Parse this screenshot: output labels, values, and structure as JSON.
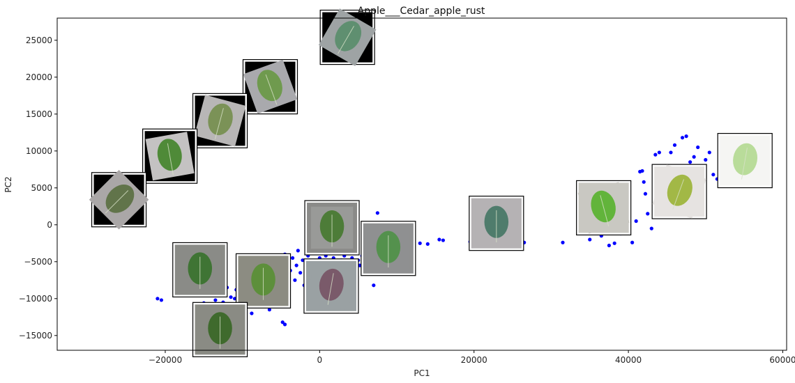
{
  "chart_data": {
    "type": "scatter",
    "title": "Apple___Cedar_apple_rust",
    "xlabel": "PC1",
    "ylabel": "PC2",
    "xlim": [
      -34000,
      60500
    ],
    "ylim": [
      -17000,
      28000
    ],
    "x_ticks": [
      -20000,
      0,
      20000,
      40000,
      60000
    ],
    "x_tick_labels": [
      "−20000",
      "0",
      "20000",
      "40000",
      "60000"
    ],
    "y_ticks": [
      -15000,
      -10000,
      -5000,
      0,
      5000,
      10000,
      15000,
      20000,
      25000
    ],
    "y_tick_labels": [
      "−15000",
      "−10000",
      "−5000",
      "0",
      "5000",
      "10000",
      "15000",
      "20000",
      "25000"
    ],
    "grid": false,
    "point_color": "#0000ff",
    "points": [
      [
        -21000,
        -10000
      ],
      [
        -20500,
        -10200
      ],
      [
        -15500,
        -10800
      ],
      [
        -15000,
        -10600
      ],
      [
        -14000,
        -9500
      ],
      [
        -13500,
        -10200
      ],
      [
        -13000,
        -9000
      ],
      [
        -12500,
        -10500
      ],
      [
        -12000,
        -8500
      ],
      [
        -11500,
        -9800
      ],
      [
        -11000,
        -10000
      ],
      [
        -10800,
        -8800
      ],
      [
        -10500,
        -11500
      ],
      [
        -10200,
        -10600
      ],
      [
        -10000,
        -9200
      ],
      [
        -9800,
        -8400
      ],
      [
        -9500,
        -9900
      ],
      [
        -9200,
        -7800
      ],
      [
        -9000,
        -10800
      ],
      [
        -8800,
        -12000
      ],
      [
        -8500,
        -7000
      ],
      [
        -8200,
        -8800
      ],
      [
        -8000,
        -6500
      ],
      [
        -7800,
        -9500
      ],
      [
        -7500,
        -10500
      ],
      [
        -7200,
        -7500
      ],
      [
        -7000,
        -6200
      ],
      [
        -6800,
        -8800
      ],
      [
        -6500,
        -11500
      ],
      [
        -6200,
        -6000
      ],
      [
        -6000,
        -9800
      ],
      [
        -5800,
        -7200
      ],
      [
        -5500,
        -5500
      ],
      [
        -5200,
        -8200
      ],
      [
        -5000,
        -6800
      ],
      [
        -4800,
        -13200
      ],
      [
        -4500,
        -13500
      ],
      [
        -4500,
        -4000
      ],
      [
        -4200,
        -5000
      ],
      [
        -4000,
        -9000
      ],
      [
        -3800,
        -6200
      ],
      [
        -3500,
        -4500
      ],
      [
        -3200,
        -7500
      ],
      [
        -3000,
        -5500
      ],
      [
        -2800,
        -3500
      ],
      [
        -2500,
        -6500
      ],
      [
        -2200,
        -4800
      ],
      [
        -2000,
        -8200
      ],
      [
        -1800,
        -5800
      ],
      [
        -1500,
        -4200
      ],
      [
        -1200,
        -7200
      ],
      [
        -1000,
        -5500
      ],
      [
        -800,
        -3800
      ],
      [
        -500,
        -6200
      ],
      [
        -300,
        -9500
      ],
      [
        -200,
        -2500
      ],
      [
        0,
        -4500
      ],
      [
        200,
        -3000
      ],
      [
        500,
        -5800
      ],
      [
        800,
        -4200
      ],
      [
        1000,
        -6500
      ],
      [
        1200,
        -3500
      ],
      [
        1500,
        -5000
      ],
      [
        1800,
        -4500
      ],
      [
        2000,
        -6200
      ],
      [
        2200,
        -3800
      ],
      [
        2500,
        -5200
      ],
      [
        2800,
        -4800
      ],
      [
        3000,
        -6800
      ],
      [
        3200,
        -4200
      ],
      [
        3500,
        -5500
      ],
      [
        3800,
        -3800
      ],
      [
        4000,
        -5000
      ],
      [
        4200,
        -4500
      ],
      [
        4500,
        -6000
      ],
      [
        4800,
        -3500
      ],
      [
        5000,
        -4800
      ],
      [
        5200,
        -5500
      ],
      [
        5500,
        -4200
      ],
      [
        5800,
        -3000
      ],
      [
        6000,
        -5000
      ],
      [
        6200,
        -4000
      ],
      [
        6500,
        -6500
      ],
      [
        6800,
        -2500
      ],
      [
        7000,
        -8200
      ],
      [
        7500,
        1600
      ],
      [
        8000,
        -3500
      ],
      [
        8500,
        -4500
      ],
      [
        9000,
        -3000
      ],
      [
        9500,
        -4000
      ],
      [
        10000,
        -3500
      ],
      [
        11000,
        -2800
      ],
      [
        12000,
        -3200
      ],
      [
        13000,
        -2500
      ],
      [
        14000,
        -2600
      ],
      [
        15500,
        -2000
      ],
      [
        16000,
        -2100
      ],
      [
        19500,
        -2300
      ],
      [
        23000,
        -2200
      ],
      [
        26500,
        -2400
      ],
      [
        31500,
        -2400
      ],
      [
        35000,
        -2000
      ],
      [
        36500,
        -1500
      ],
      [
        37500,
        -2800
      ],
      [
        38200,
        -2500
      ],
      [
        39000,
        -1200
      ],
      [
        40000,
        200
      ],
      [
        40500,
        -2400
      ],
      [
        41000,
        500
      ],
      [
        41500,
        7200
      ],
      [
        41800,
        7300
      ],
      [
        42000,
        5800
      ],
      [
        42500,
        1500
      ],
      [
        43000,
        -500
      ],
      [
        43500,
        9500
      ],
      [
        44000,
        9800
      ],
      [
        44500,
        4500
      ],
      [
        45000,
        7500
      ],
      [
        45500,
        9800
      ],
      [
        46000,
        10800
      ],
      [
        46500,
        6800
      ],
      [
        47000,
        11800
      ],
      [
        47500,
        12000
      ],
      [
        48000,
        8500
      ],
      [
        48500,
        9200
      ],
      [
        49000,
        10500
      ],
      [
        49500,
        7800
      ],
      [
        50000,
        8800
      ],
      [
        50500,
        9800
      ],
      [
        51000,
        6800
      ],
      [
        51500,
        6200
      ],
      [
        52000,
        6400
      ],
      [
        52500,
        5500
      ],
      [
        53000,
        11000
      ],
      [
        53500,
        9000
      ],
      [
        54000,
        6500
      ],
      [
        54500,
        7200
      ],
      [
        55000,
        5800
      ],
      [
        42200,
        4200
      ],
      [
        44800,
        2200
      ],
      [
        -23000,
        5800
      ],
      [
        -23500,
        6500
      ],
      [
        -22500,
        6200
      ],
      [
        -19000,
        8300
      ],
      [
        -18500,
        9000
      ],
      [
        -17000,
        10200
      ],
      [
        -16500,
        10600
      ],
      [
        -15500,
        11800
      ],
      [
        -16000,
        11200
      ],
      [
        -19500,
        7700
      ]
    ],
    "thumbnails": [
      {
        "x": 3600,
        "y": 25400,
        "bg": "#9ea3a4",
        "corner": "#000000",
        "leaf": "#5f8f70",
        "rot": 30,
        "name": "thumbnail-top"
      },
      {
        "x": -6400,
        "y": 18700,
        "bg": "#a9a9ad",
        "corner": "#000000",
        "leaf": "#6f9a4e",
        "rot": -20,
        "name": "thumbnail-upper-2"
      },
      {
        "x": -12900,
        "y": 14100,
        "bg": "#b8b6b6",
        "corner": "#000000",
        "leaf": "#7b9257",
        "rot": 15,
        "name": "thumbnail-upper-3"
      },
      {
        "x": -19400,
        "y": 9300,
        "bg": "#c4c2c2",
        "corner": "#000000",
        "leaf": "#4f8a38",
        "rot": -10,
        "name": "thumbnail-upper-4"
      },
      {
        "x": -26000,
        "y": 3400,
        "bg": "#aaa7a7",
        "corner": "#000000",
        "leaf": "#61744a",
        "rot": 45,
        "name": "thumbnail-left"
      },
      {
        "x": 1600,
        "y": -400,
        "bg": "#999a98",
        "corner": "#8a8a88",
        "leaf": "#4d7c38",
        "rot": 0,
        "name": "thumbnail-center-top"
      },
      {
        "x": 8900,
        "y": -3200,
        "bg": "#8f9091",
        "corner": "#8f9091",
        "leaf": "#54914d",
        "rot": 0,
        "name": "thumbnail-center-right"
      },
      {
        "x": 1500,
        "y": -8300,
        "bg": "#9aa1a3",
        "corner": "#9aa1a3",
        "leaf": "#7a5a6a",
        "rot": 10,
        "name": "thumbnail-center-purple"
      },
      {
        "x": -15500,
        "y": -6100,
        "bg": "#8a8b87",
        "corner": "#8a8b87",
        "leaf": "#3f7434",
        "rot": 0,
        "name": "thumbnail-lower-left"
      },
      {
        "x": -7300,
        "y": -7600,
        "bg": "#8c8c82",
        "corner": "#8c8c82",
        "leaf": "#5d8f3b",
        "rot": 0,
        "name": "thumbnail-lower-mid"
      },
      {
        "x": -12900,
        "y": -14200,
        "bg": "#8a8b84",
        "corner": "#8a8b84",
        "leaf": "#3f6a2d",
        "rot": 0,
        "name": "thumbnail-bottom"
      },
      {
        "x": 22900,
        "y": 200,
        "bg": "#b5b2b4",
        "corner": "#b5b2b4",
        "leaf": "#4f7c6c",
        "rot": 0,
        "name": "thumbnail-mid-right"
      },
      {
        "x": 36800,
        "y": 2300,
        "bg": "#c9c8c2",
        "corner": "#c9c8c2",
        "leaf": "#62b43b",
        "rot": -15,
        "name": "thumbnail-right-1"
      },
      {
        "x": 46600,
        "y": 4500,
        "bg": "#e6e3e1",
        "corner": "#e6e3e1",
        "leaf": "#a2b846",
        "rot": 20,
        "name": "thumbnail-right-2"
      },
      {
        "x": 55100,
        "y": 8700,
        "bg": "#f5f5f3",
        "corner": "#f5f5f3",
        "leaf": "#b9dc9a",
        "rot": 10,
        "name": "thumbnail-right-3"
      }
    ]
  }
}
